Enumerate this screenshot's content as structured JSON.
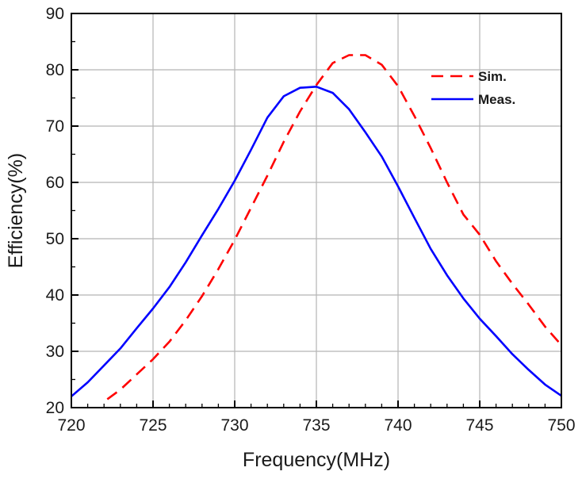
{
  "chart_data": {
    "type": "line",
    "title": "",
    "xlabel": "Frequency(MHz)",
    "ylabel": "Efficiency(%)",
    "xlim": [
      720,
      750
    ],
    "ylim": [
      20,
      90
    ],
    "xticks": [
      720,
      725,
      730,
      735,
      740,
      745,
      750
    ],
    "yticks": [
      20,
      30,
      40,
      50,
      60,
      70,
      80,
      90
    ],
    "x_minor_step": 1,
    "y_minor_step": 5,
    "grid": true,
    "legend_position": "top-right",
    "series": [
      {
        "name": "Sim.",
        "color": "#ff0000",
        "style": "dashed",
        "x": [
          722.2,
          723,
          724,
          725,
          726,
          727,
          728,
          729,
          730,
          731,
          732,
          733,
          734,
          735,
          736,
          737,
          738,
          739,
          740,
          741,
          742,
          743,
          744,
          745,
          746,
          747,
          748,
          749,
          750
        ],
        "y": [
          21.5,
          23.2,
          25.9,
          28.6,
          31.7,
          35.5,
          39.8,
          44.6,
          49.8,
          55.5,
          61.2,
          67.2,
          72.6,
          77.3,
          81.2,
          82.6,
          82.6,
          80.9,
          77.1,
          71.8,
          66.1,
          60.0,
          54.3,
          50.7,
          46.0,
          42.0,
          38.3,
          34.4,
          31.1
        ]
      },
      {
        "name": "Meas.",
        "color": "#0000ff",
        "style": "solid",
        "x": [
          720,
          721,
          722,
          723,
          724,
          725,
          726,
          727,
          728,
          729,
          730,
          731,
          732,
          733,
          734,
          735,
          736,
          737,
          738,
          739,
          740,
          741,
          742,
          743,
          744,
          745,
          746,
          747,
          748,
          749,
          750
        ],
        "y": [
          22.0,
          24.5,
          27.5,
          30.5,
          34.1,
          37.6,
          41.4,
          45.8,
          50.6,
          55.3,
          60.3,
          65.8,
          71.5,
          75.3,
          76.8,
          77.0,
          75.9,
          73.0,
          68.9,
          64.6,
          59.3,
          53.7,
          48.2,
          43.5,
          39.4,
          35.8,
          32.7,
          29.5,
          26.7,
          24.1,
          22.1
        ]
      }
    ]
  }
}
